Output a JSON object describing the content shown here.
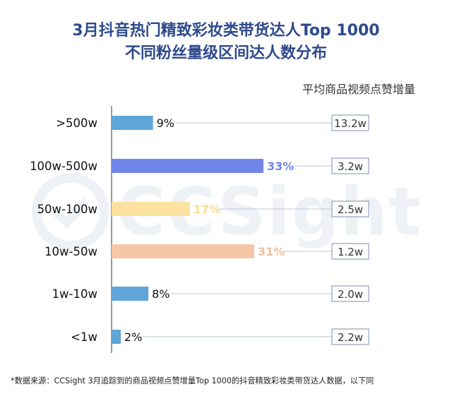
{
  "header": {
    "title_line1": "3月抖音热门精致彩妆类带货达人Top 1000",
    "title_line2": "不同粉丝量级区间达人数分布"
  },
  "watermark": {
    "text": "CCSight"
  },
  "chart_data": {
    "type": "bar",
    "orientation": "horizontal",
    "categories": [
      ">500w",
      "100w-500w",
      "50w-100w",
      "10w-50w",
      "1w-10w",
      "<1w"
    ],
    "values": [
      9,
      33,
      17,
      31,
      8,
      2
    ],
    "value_labels": [
      "9%",
      "33%",
      "17%",
      "31%",
      "8%",
      "2%"
    ],
    "bar_colors": [
      "#5fa5d8",
      "#6f86e8",
      "#fbe2a0",
      "#f6c6a7",
      "#5fa5d8",
      "#5fa5d8"
    ],
    "value_label_colors": [
      "#111111",
      "#6f86e8",
      "#f9dc90",
      "#f3be9f",
      "#111111",
      "#111111"
    ],
    "right_axis_title": "平均商品视频点赞增量",
    "right_values": [
      "13.2w",
      "3.2w",
      "2.5w",
      "1.2w",
      "2.0w",
      "2.2w"
    ],
    "xlim": [
      0,
      33
    ]
  },
  "footnote": "*数据来源：CCSight 3月追踪到的商品视频点赞增量Top 1000的抖音精致彩妆类带货达人数据，以下同"
}
